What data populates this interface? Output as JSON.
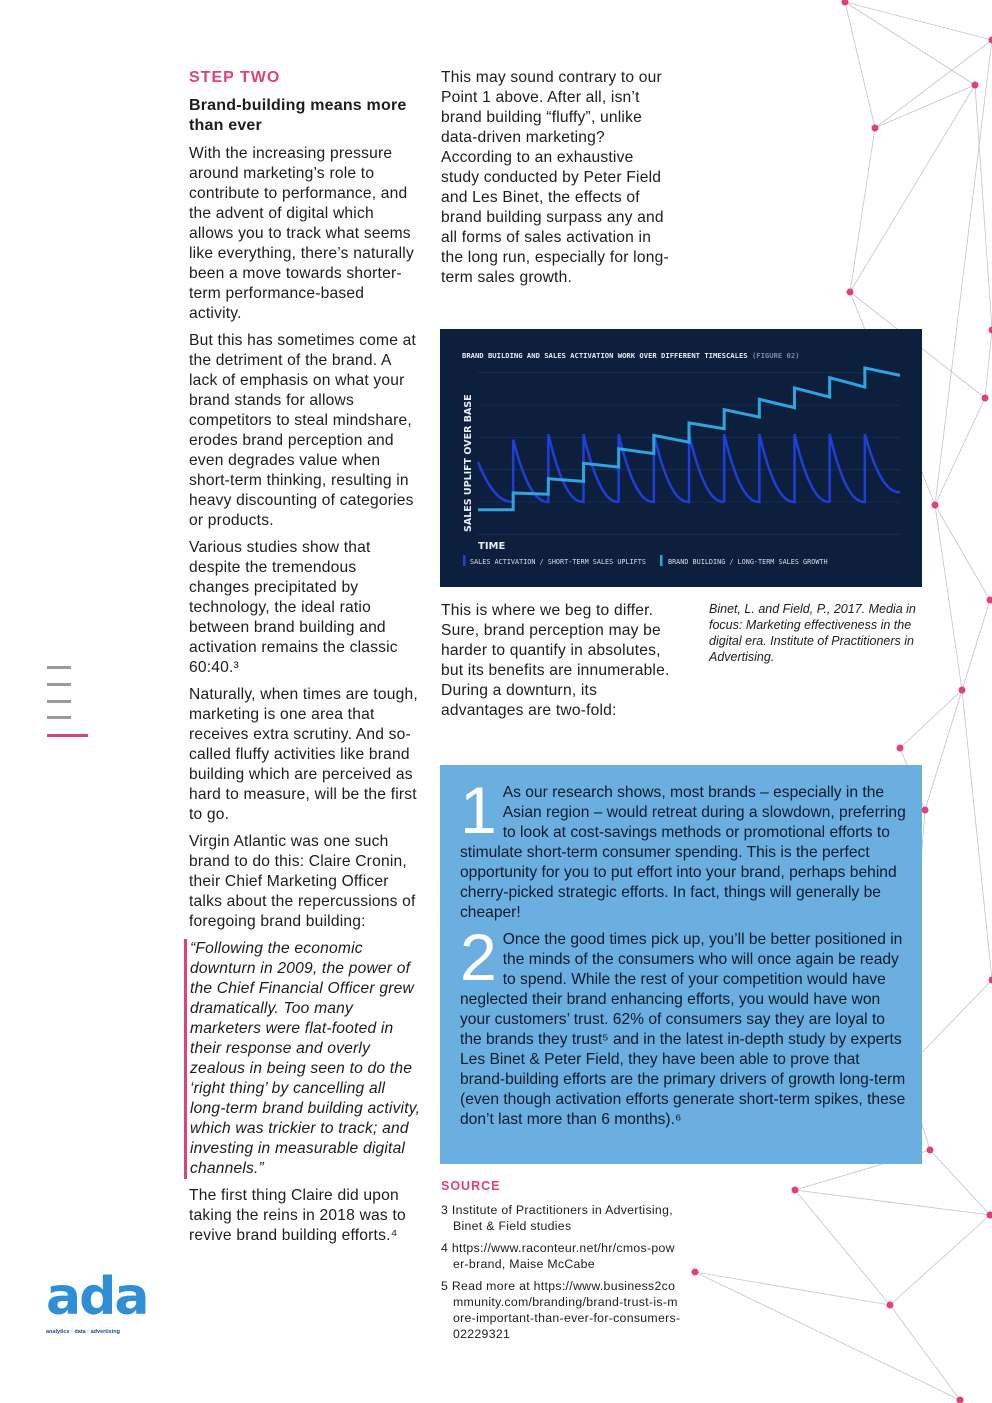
{
  "left_column": {
    "step_label": "STEP TWO",
    "heading": "Brand-building means more than ever",
    "paragraphs": [
      "With the increasing pressure around marketing’s role to contribute to performance, and the advent of digital which allows you to track what seems like everything, there’s naturally been a move towards shorter-term performance-based activity.",
      "But this has sometimes come at the detriment of the brand. A lack of emphasis on what your brand stands for allows competitors to steal mindshare, erodes brand perception and even degrades value when short-term thinking, resulting in heavy discounting of categories or products.",
      "Various studies show that despite the tremendous changes precipitated by technology, the ideal ratio between brand building and activation remains the classic 60:40.³",
      "Naturally, when times are tough, marketing is one area that receives extra scrutiny. And so-called fluffy activities like brand building which are perceived as hard to measure, will be the first to go.",
      "Virgin Atlantic was one such brand to do this: Claire Cronin, their Chief Marketing Officer talks about the repercussions of foregoing brand building:"
    ],
    "quote": "“Following the economic downturn in 2009, the power of the Chief Financial Officer grew dramatically. Too many marketers were flat-footed in their response and overly zealous in being seen to do the ‘right thing’ by cancelling all long-term brand building activity, which was trickier to track; and investing in measurable digital channels.”",
    "closing": "The first thing Claire did upon taking the reins in 2018 was to revive brand building efforts.⁴"
  },
  "middle_column": {
    "intro": "This may sound contrary to our Point 1 above. After all, isn’t brand building “fluffy”, unlike data-driven marketing? According to an exhaustive study conducted by Peter Field and Les Binet, the effects of brand building surpass any and all forms of sales activation in the long run, especially for long-term sales growth.",
    "after_chart": "This is where we beg to differ. Sure, brand perception may be harder to quantify in absolutes, but its benefits are innumerable. During a downturn, its advantages are two-fold:"
  },
  "citation": "Binet, L. and Field, P., 2017. Media in focus: Marketing effectiveness in the digital era. Institute of Practitioners in Advertising.",
  "chart_data": {
    "type": "line",
    "title": "BRAND BUILDING AND SALES ACTIVATION WORK OVER DIFFERENT TIMESCALES",
    "figure_label": "(FIGURE 02)",
    "xlabel": "TIME",
    "ylabel": "SALES UPLIFT OVER BASE",
    "grid": true,
    "legend_placement": "bottom",
    "colors": {
      "background": "#0c1f3d",
      "activation": "#1f3fd8",
      "brand": "#2fa4e0"
    },
    "series": [
      {
        "name": "SALES ACTIVATION / SHORT-TERM SALES UPLIFTS",
        "pattern": "spike-and-decay",
        "start": 1.24,
        "peaks": [
          1.93,
          2.1,
          2.1,
          2.1,
          2.1,
          2.1,
          2.1,
          2.1,
          2.1,
          2.1,
          2.1
        ],
        "end": 0.3
      },
      {
        "name": "BRAND BUILDING / LONG-TERM SALES GROWTH",
        "pattern": "step-and-drift",
        "levels_start": [
          -0.24,
          0.28,
          0.72,
          1.2,
          1.65,
          2.06,
          2.45,
          2.86,
          3.18,
          3.53,
          3.85,
          4.15
        ],
        "levels_end": [
          -0.24,
          0.24,
          0.64,
          1.08,
          1.5,
          1.85,
          2.27,
          2.63,
          2.92,
          3.25,
          3.56,
          3.92
        ]
      }
    ]
  },
  "callout": {
    "items": [
      {
        "number": "1",
        "text": "As our research shows, most brands – especially in the Asian region – would retreat during a slowdown, preferring to look at cost-savings methods or promotional efforts to stimulate short-term consumer spending. This is the perfect opportunity for you to put effort into your brand, perhaps behind cherry-picked strategic efforts. In fact, things will generally be cheaper!"
      },
      {
        "number": "2",
        "text": "Once the good times pick up, you’ll be better positioned in the minds of the consumers who will once again be ready to spend. While the rest of your competition would have neglected their brand enhancing efforts, you would have won your customers’ trust. 62% of consumers say they are loyal to the brands they trust⁵ and in the latest in-depth study by experts Les Binet & Peter Field, they have been able to prove that brand-building efforts are the primary drivers of growth long-term (even though activation efforts generate short-term spikes, these don’t last more than 6 months).⁶"
      }
    ],
    "color": "#6aafe0"
  },
  "sources": {
    "heading": "SOURCE",
    "items": [
      "3 Institute of Practitioners in Advertising, Binet & Field studies",
      "4 https://www.raconteur.net/hr/cmos-power-brand, Maise McCabe",
      "5 Read more at https://www.business2community.com/branding/brand-trust-is-more-important-than-ever-for-consumers-02229321"
    ]
  },
  "logo": {
    "text": "ada",
    "tagline": "analytics · data · advertising"
  },
  "accent_color": "#e0407b"
}
